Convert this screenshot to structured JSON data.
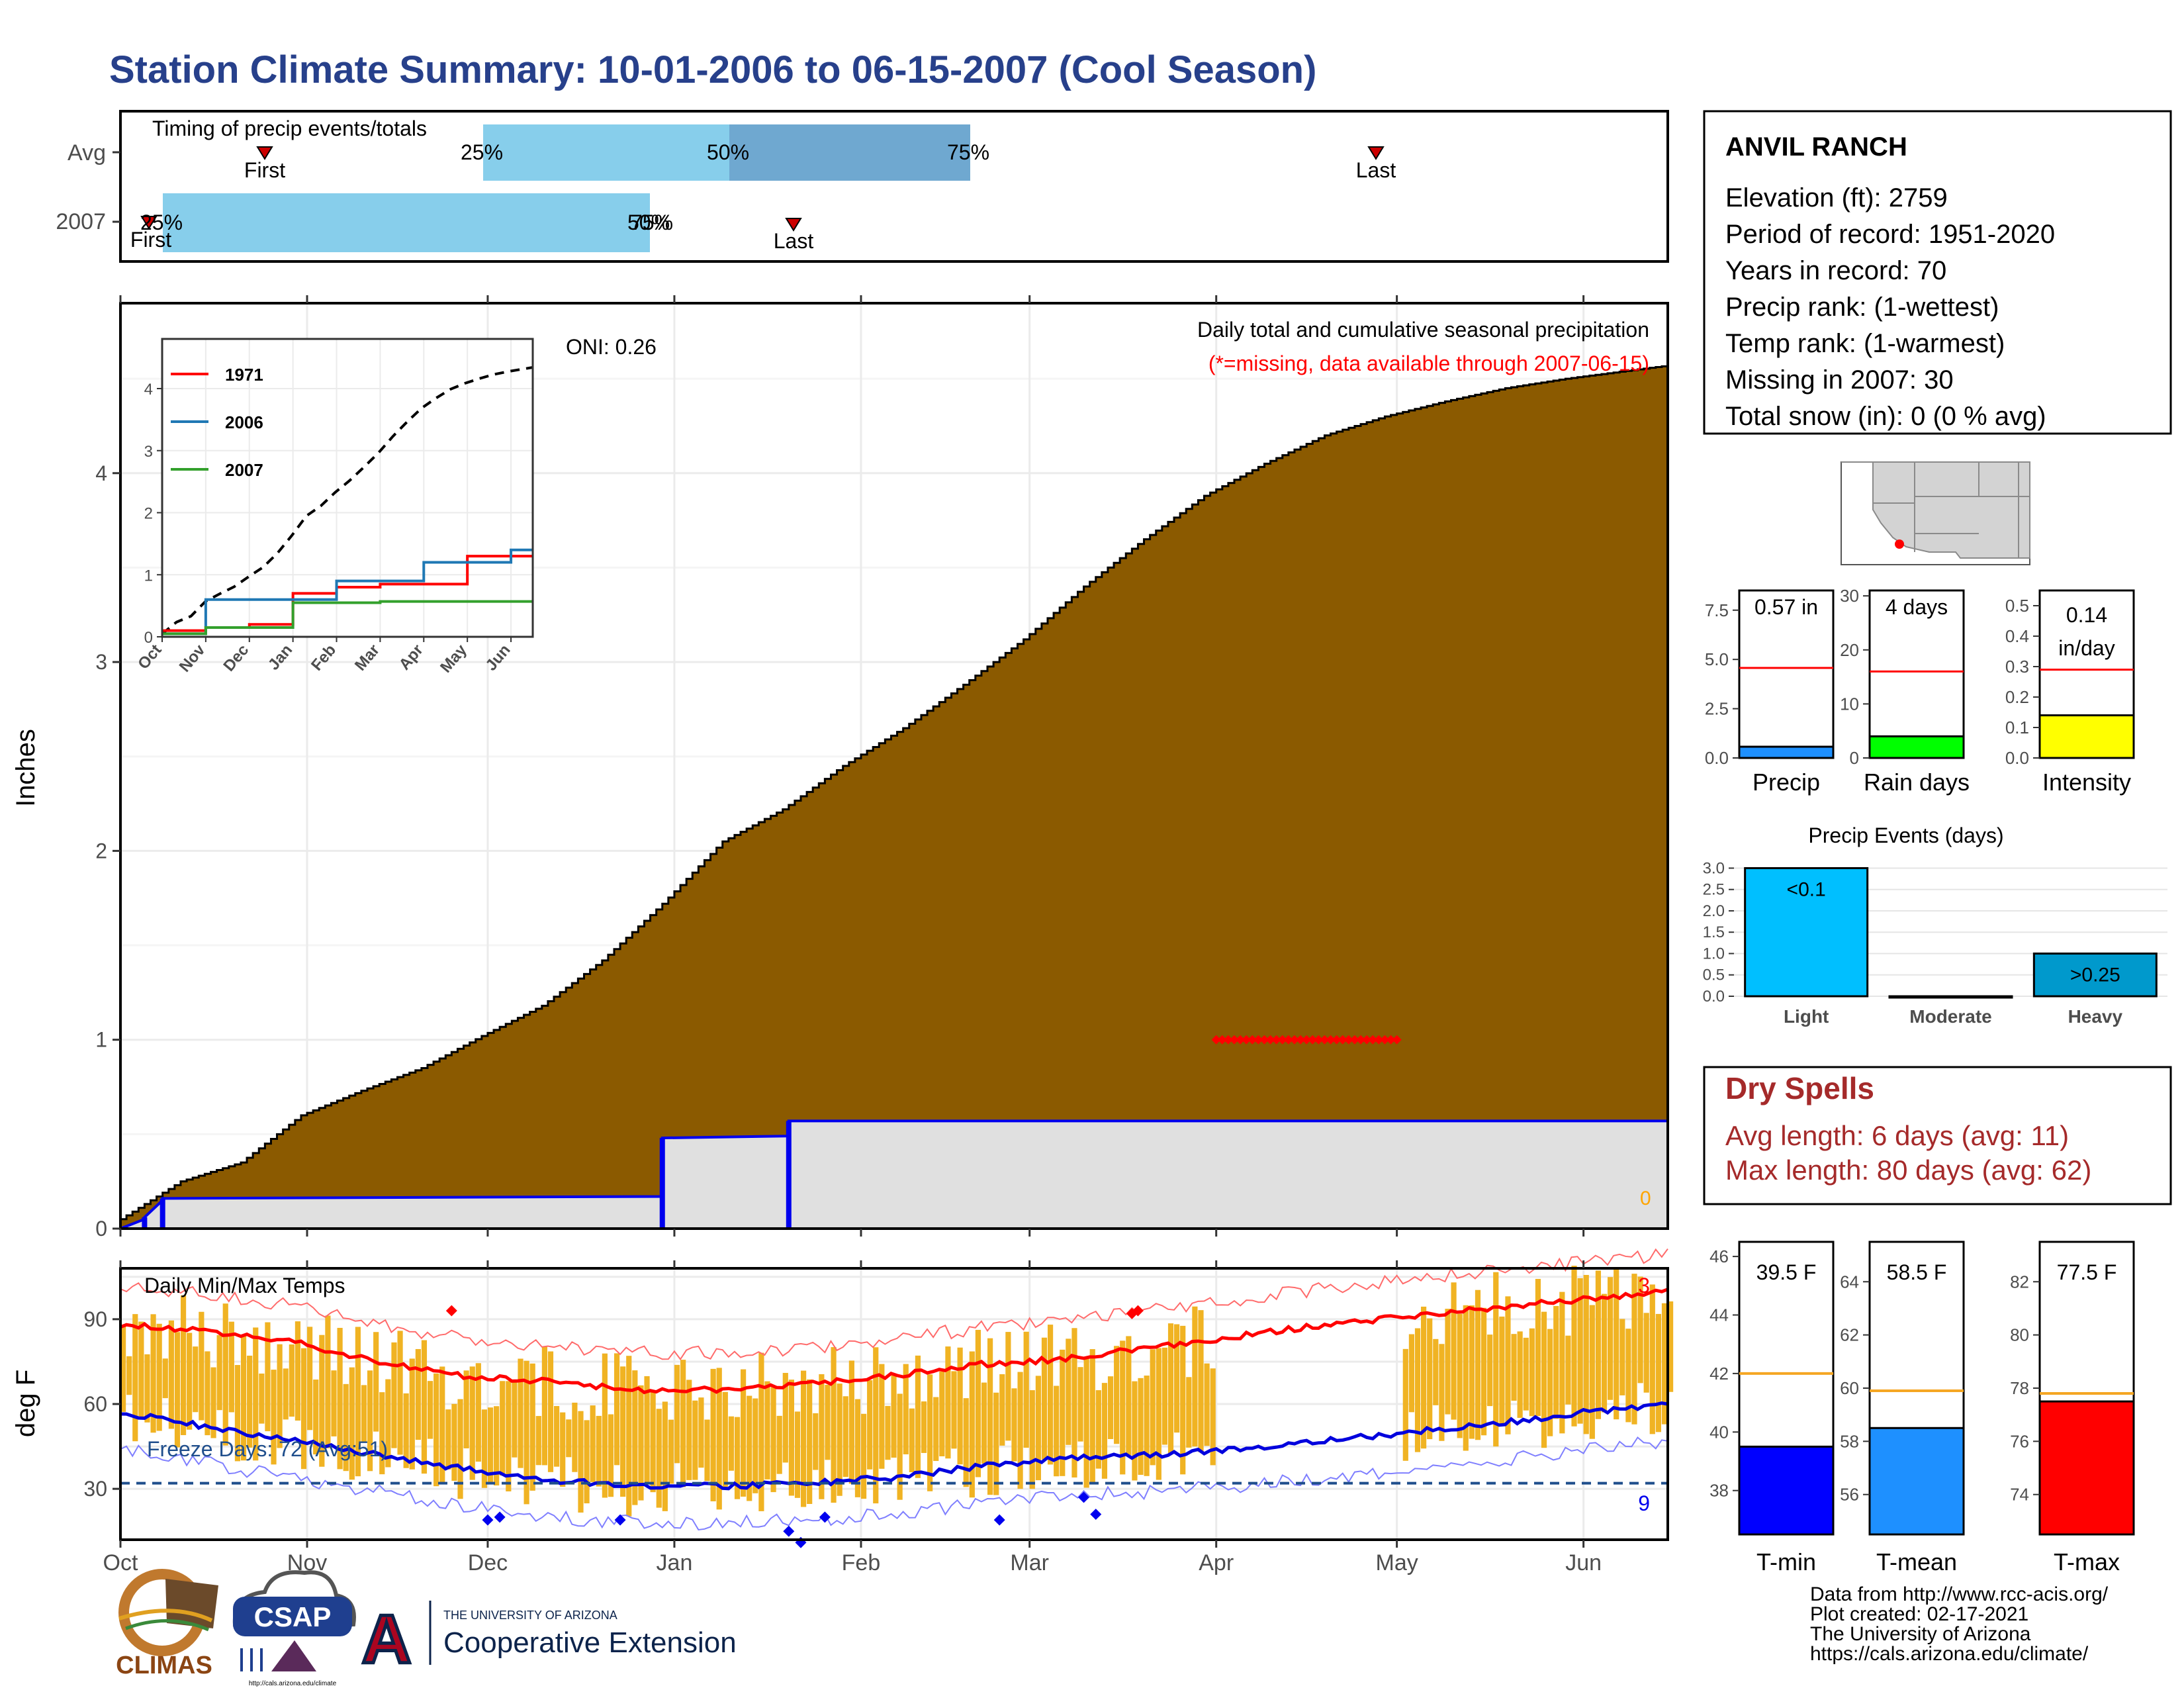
{
  "title": "Station Climate Summary: 10-01-2006 to 06-15-2007 (Cool Season)",
  "colors": {
    "title": "#27408b",
    "brown": "#8b5a00",
    "gray_fill": "#e0e0e0",
    "blue_line": "#0000ee",
    "light_blue": "#87ceeb",
    "mid_blue": "#6fa8d0",
    "gold": "#f0b323",
    "red": "#ff0000",
    "dry_red": "#a52a2a",
    "freeze_blue": "#1f4e8c"
  },
  "timing": {
    "title": "Timing of precip events/totals",
    "rows": [
      "Avg",
      "2007"
    ],
    "avg": {
      "first": "First",
      "last": "Last",
      "p25": "25%",
      "p50": "50%",
      "p75": "75%"
    },
    "y2007": {
      "first": "First",
      "last": "Last",
      "p25": "25%",
      "p50": "50%",
      "p75": "75%"
    }
  },
  "precip_panel": {
    "ylabel": "Inches",
    "yticks": [
      "0",
      "1",
      "2",
      "3",
      "4"
    ],
    "caption": "Daily total and cumulative seasonal precipitation",
    "missing_note": "(*=missing, data available through 2007-06-15)",
    "oni": "ONI: 0.26",
    "zero_label": "0"
  },
  "inset": {
    "legend": [
      "1971",
      "2006",
      "2007"
    ],
    "yticks": [
      "0",
      "1",
      "2",
      "3",
      "4"
    ],
    "xticks": [
      "Oct",
      "Nov",
      "Dec",
      "Jan",
      "Feb",
      "Mar",
      "Apr",
      "May",
      "Jun"
    ]
  },
  "temp_panel": {
    "ylabel": "deg F",
    "title": "Daily Min/Max Temps",
    "yticks": [
      "30",
      "60",
      "90"
    ],
    "freeze": "Freeze Days: 72 (Avg:51)",
    "max_records": "3",
    "min_records": "9"
  },
  "months": [
    "Oct",
    "Nov",
    "Dec",
    "Jan",
    "Feb",
    "Mar",
    "Apr",
    "May",
    "Jun"
  ],
  "station": {
    "name": "ANVIL RANCH",
    "lines": [
      "Elevation (ft): 2759",
      "Period of record: 1951-2020",
      "Years in record: 70",
      "Precip rank:  (1-wettest)",
      "Temp rank:  (1-warmest)",
      "Missing in 2007: 30",
      "Total snow (in): 0 (0 % avg)"
    ]
  },
  "mini_bars": [
    {
      "label": "Precip",
      "value_text": "0.57 in",
      "yticks": [
        "0.0",
        "2.5",
        "5.0",
        "7.5"
      ]
    },
    {
      "label": "Rain days",
      "value_text": "4 days",
      "yticks": [
        "0",
        "10",
        "20",
        "30"
      ]
    },
    {
      "label": "Intensity",
      "value_text_1": "0.14",
      "value_text_2": "in/day",
      "yticks": [
        "0.0",
        "0.1",
        "0.2",
        "0.3",
        "0.4",
        "0.5"
      ]
    }
  ],
  "events": {
    "title": "Precip Events (days)",
    "categories": [
      "Light",
      "Moderate",
      "Heavy"
    ],
    "bar_labels": [
      "<0.1",
      ">0.25"
    ],
    "yticks": [
      "0.0",
      "0.5",
      "1.0",
      "1.5",
      "2.0",
      "2.5",
      "3.0"
    ]
  },
  "dry": {
    "title": "Dry Spells",
    "avg": "Avg length: 6 days (avg: 11)",
    "max": "Max length: 80 days (avg: 62)"
  },
  "temp_bars": [
    {
      "label": "T-min",
      "value_text": "39.5 F",
      "yticks": [
        "38",
        "40",
        "42",
        "44",
        "46"
      ]
    },
    {
      "label": "T-mean",
      "value_text": "58.5 F",
      "yticks": [
        "56",
        "58",
        "60",
        "62",
        "64"
      ]
    },
    {
      "label": "T-max",
      "value_text": "77.5 F",
      "yticks": [
        "74",
        "76",
        "78",
        "80",
        "82"
      ]
    }
  ],
  "footer": {
    "lines": [
      "Data from http://www.rcc-acis.org/",
      "Plot created: 02-17-2021",
      "The University of Arizona",
      "https://cals.arizona.edu/climate/"
    ],
    "logos": {
      "climas": "CLIMAS",
      "csap": "CSAP",
      "csap_url": "http://cals.arizona.edu/climate",
      "ua_small": "THE UNIVERSITY OF ARIZONA",
      "ua_big": "Cooperative Extension",
      "ua_letter": "A"
    }
  },
  "chart_data": [
    {
      "type": "area",
      "title": "Daily total and cumulative seasonal precipitation",
      "ylabel": "Inches",
      "x_dates": [
        "2006-10-01",
        "2007-06-15"
      ],
      "ylim": [
        0,
        4.9
      ],
      "series": [
        {
          "name": "Avg",
          "x": [
            0,
            10,
            20,
            30,
            40,
            50,
            60,
            70,
            80,
            90,
            100,
            110,
            120,
            130,
            140,
            150,
            160,
            170,
            180,
            190,
            200,
            210,
            220,
            230,
            240,
            257
          ],
          "values": [
            0.05,
            0.25,
            0.35,
            0.6,
            0.73,
            0.85,
            1.02,
            1.18,
            1.42,
            1.72,
            2.05,
            2.22,
            2.45,
            2.65,
            2.88,
            3.12,
            3.4,
            3.65,
            3.88,
            4.05,
            4.2,
            4.3,
            4.38,
            4.45,
            4.5,
            4.57
          ]
        },
        {
          "x": [
            0,
            4,
            4,
            7,
            7,
            90,
            90,
            111,
            111,
            257
          ],
          "values": [
            0.0,
            0.05,
            0.06,
            0.15,
            0.16,
            0.17,
            0.48,
            0.49,
            0.57,
            0.57
          ]
        }
      ],
      "missing_marker_value": 1.0,
      "missing_x_range": [
        182,
        212
      ]
    },
    {
      "type": "line",
      "title": "",
      "ylim": [
        0,
        4.8
      ],
      "x": [
        "Oct",
        "Nov",
        "Dec",
        "Jan",
        "Feb",
        "Mar",
        "Apr",
        "May",
        "Jun"
      ],
      "series": [
        {
          "name": "1971",
          "values": [
            0.1,
            0.15,
            0.2,
            0.7,
            0.8,
            0.85,
            0.85,
            1.3,
            1.3
          ]
        },
        {
          "name": "2006",
          "values": [
            0.05,
            0.6,
            0.6,
            0.6,
            0.9,
            0.9,
            1.2,
            1.2,
            1.4
          ]
        },
        {
          "name": "2007",
          "values": [
            0.05,
            0.15,
            0.15,
            0.55,
            0.55,
            0.57,
            0.57,
            0.57,
            0.57
          ]
        }
      ]
    },
    {
      "type": "line",
      "title": "Daily Min/Max Temps",
      "ylabel": "deg F",
      "ylim": [
        12,
        108
      ],
      "avg_max": [
        88,
        86,
        82,
        75,
        70,
        68,
        65,
        65,
        67,
        70,
        74,
        76,
        80,
        84,
        88,
        91,
        94,
        97,
        100
      ],
      "avg_min": [
        57,
        52,
        47,
        42,
        37,
        33,
        31,
        31,
        32,
        34,
        38,
        41,
        42,
        44,
        47,
        50,
        53,
        57,
        60
      ],
      "freeze_line": 32
    },
    {
      "type": "bar",
      "categories": [
        "Precip"
      ],
      "values": [
        0.57
      ],
      "avg": 4.57,
      "ylim": [
        0,
        8.5
      ]
    },
    {
      "type": "bar",
      "categories": [
        "Rain days"
      ],
      "values": [
        4
      ],
      "avg": 16,
      "ylim": [
        0,
        31
      ]
    },
    {
      "type": "bar",
      "categories": [
        "Intensity"
      ],
      "values": [
        0.14
      ],
      "avg": 0.29,
      "ylim": [
        0,
        0.55
      ]
    },
    {
      "type": "bar",
      "title": "Precip Events (days)",
      "categories": [
        "Light",
        "Moderate",
        "Heavy"
      ],
      "values": [
        3,
        0,
        1
      ],
      "ylim": [
        0,
        3.1
      ]
    },
    {
      "type": "bar",
      "categories": [
        "T-min"
      ],
      "values": [
        39.5
      ],
      "avg": 42,
      "ylim": [
        36.5,
        46.5
      ]
    },
    {
      "type": "bar",
      "categories": [
        "T-mean"
      ],
      "values": [
        58.5
      ],
      "avg": 59.9,
      "ylim": [
        54.5,
        65.5
      ]
    },
    {
      "type": "bar",
      "categories": [
        "T-max"
      ],
      "values": [
        77.5
      ],
      "avg": 77.8,
      "ylim": [
        72.5,
        83.5
      ]
    }
  ]
}
